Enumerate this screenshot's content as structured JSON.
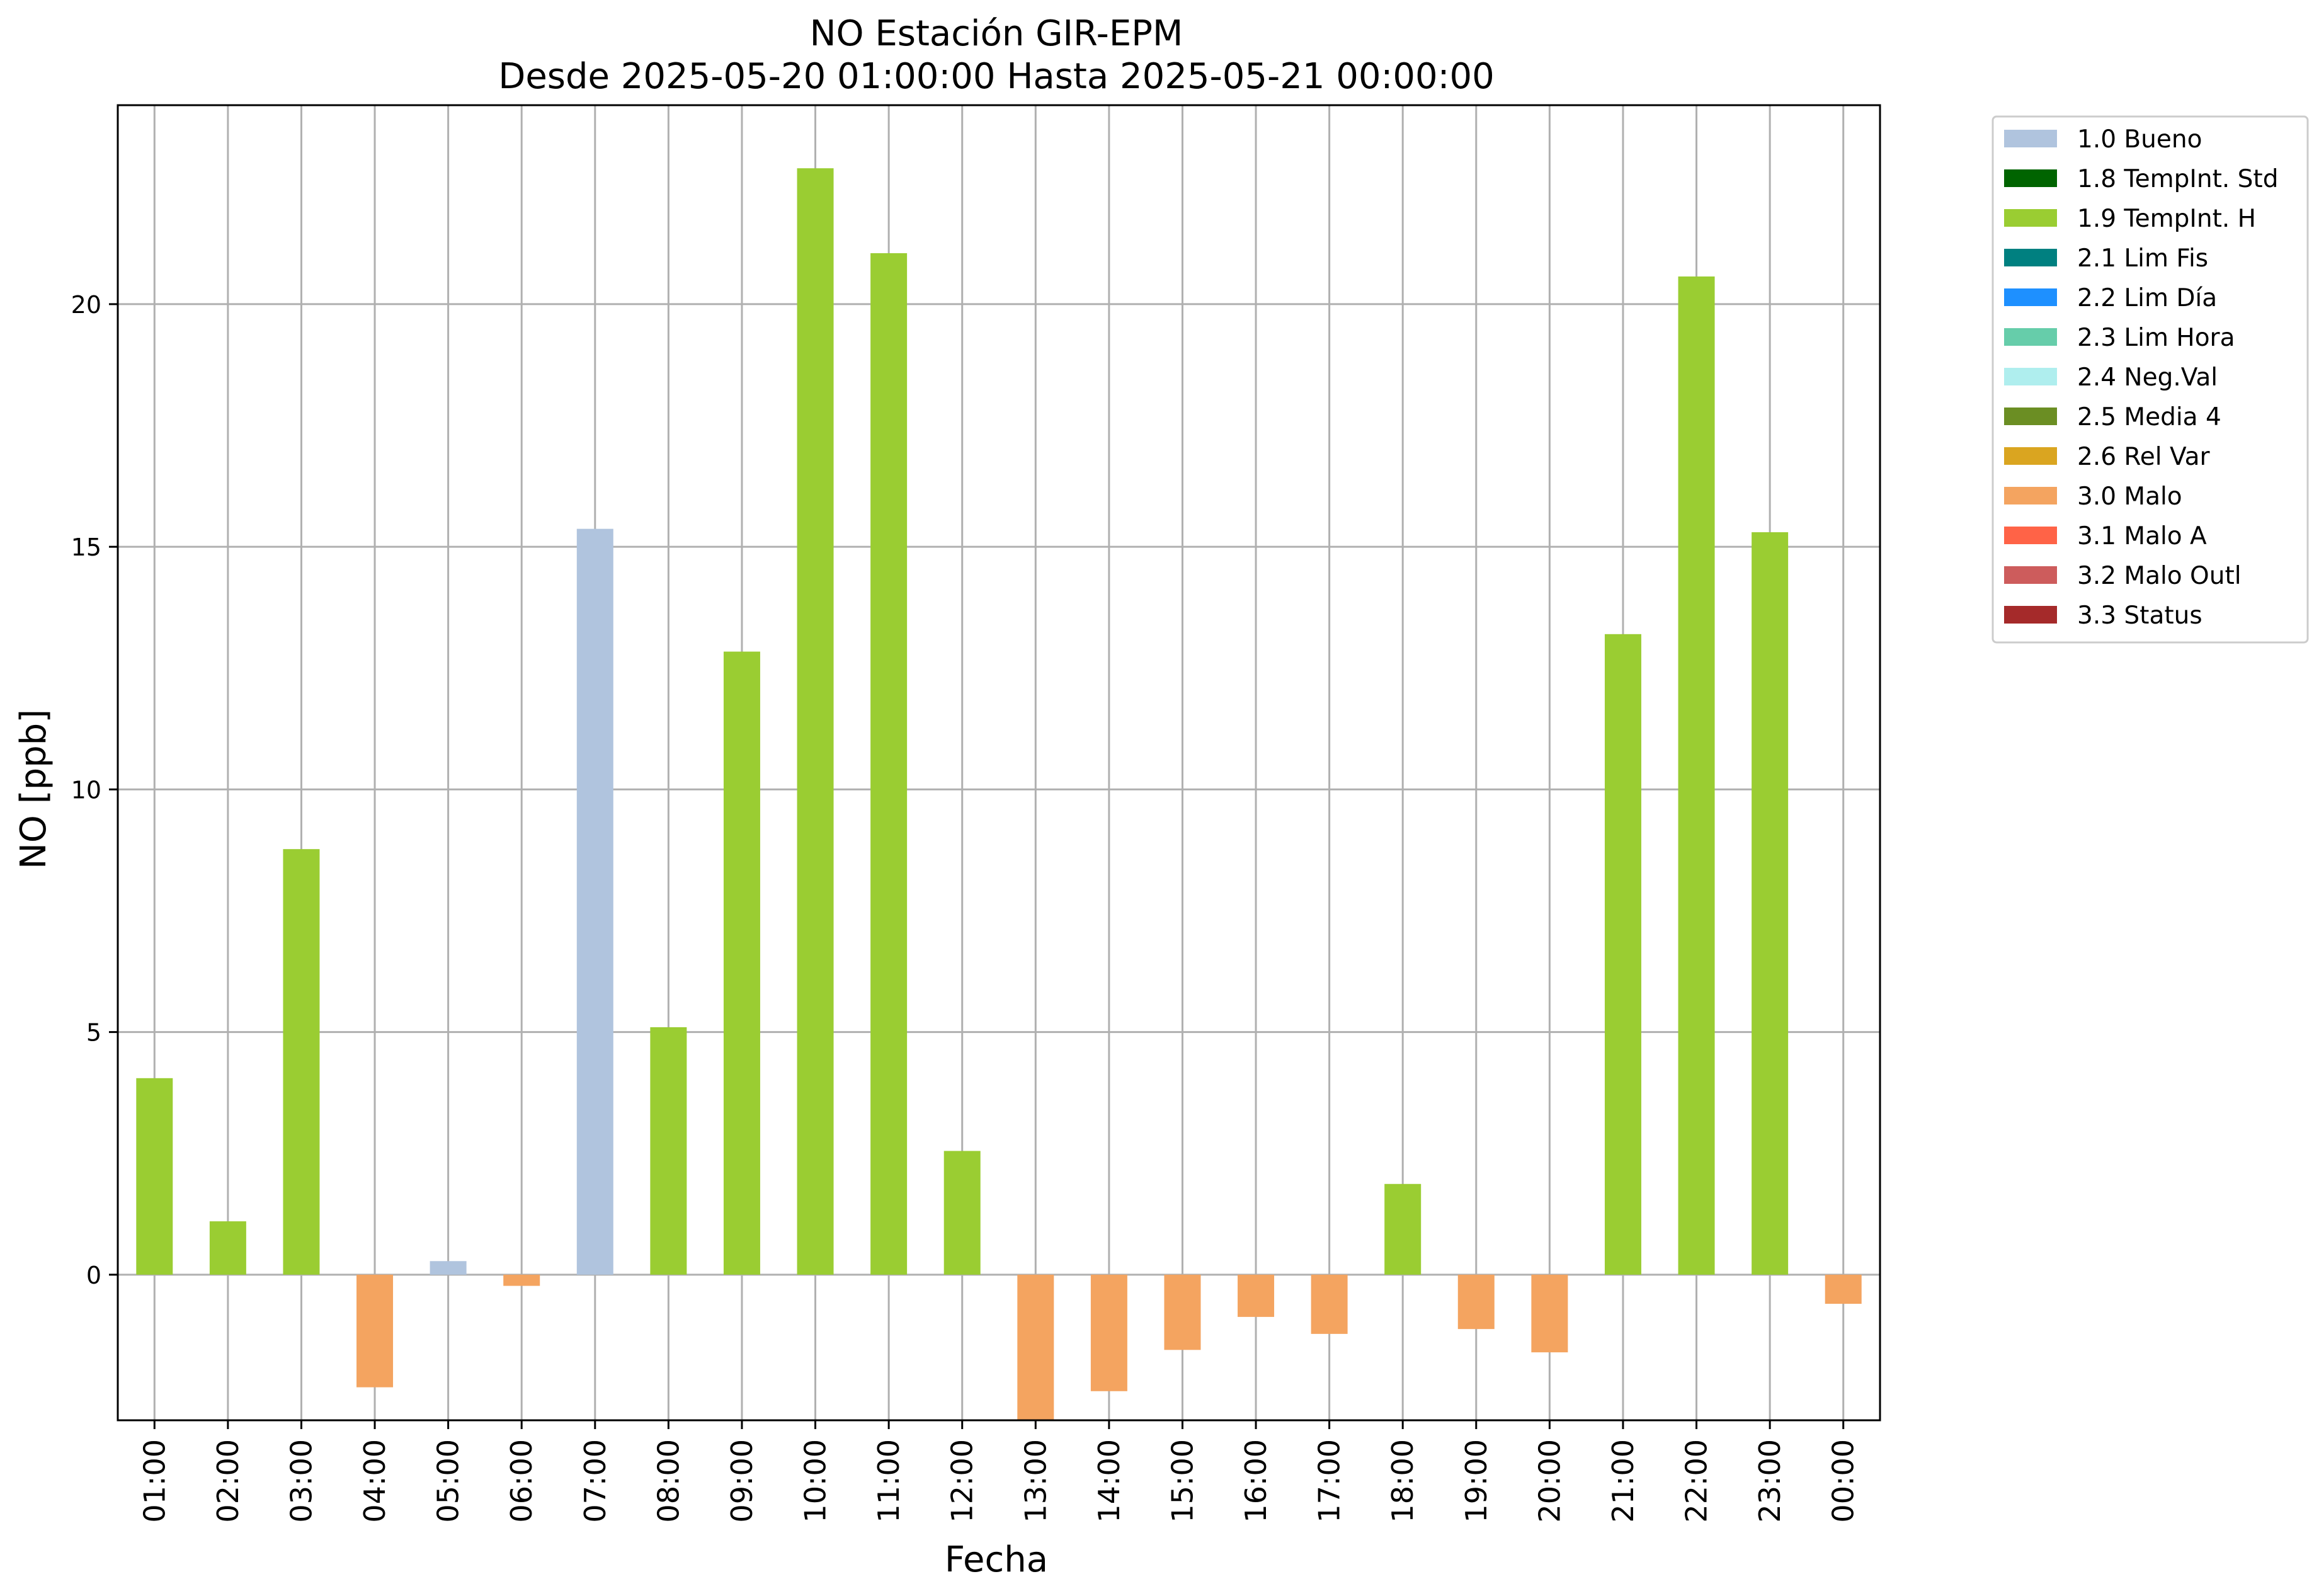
{
  "chart_data": {
    "type": "bar",
    "title": "NO Estación GIR-EPM",
    "subtitle": "Desde 2025-05-20 01:00:00 Hasta 2025-05-21 00:00:00",
    "xlabel": "Fecha",
    "ylabel": "NO [ppb]",
    "ylim": [
      -3.0,
      24.1
    ],
    "yticks": [
      0,
      5,
      10,
      15,
      20
    ],
    "grid": true,
    "legend_position": "outside-right-top",
    "categories": [
      "01:00",
      "02:00",
      "03:00",
      "04:00",
      "05:00",
      "06:00",
      "07:00",
      "08:00",
      "09:00",
      "10:00",
      "11:00",
      "12:00",
      "13:00",
      "14:00",
      "15:00",
      "16:00",
      "17:00",
      "18:00",
      "19:00",
      "20:00",
      "21:00",
      "22:00",
      "23:00",
      "00:00"
    ],
    "values": [
      4.05,
      1.1,
      8.77,
      -2.32,
      0.28,
      -0.23,
      15.37,
      5.1,
      12.84,
      22.8,
      21.05,
      2.55,
      -3.1,
      -2.4,
      -1.55,
      -0.87,
      -1.22,
      1.87,
      -1.12,
      -1.6,
      13.2,
      20.57,
      15.3,
      -0.6
    ],
    "flags": [
      "1.9",
      "1.9",
      "1.9",
      "3.0",
      "1.0",
      "3.0",
      "1.0",
      "1.9",
      "1.9",
      "1.9",
      "1.9",
      "1.9",
      "3.0",
      "3.0",
      "3.0",
      "3.0",
      "3.0",
      "1.9",
      "3.0",
      "3.0",
      "1.9",
      "1.9",
      "1.9",
      "3.0"
    ],
    "legend": [
      {
        "code": "1.0",
        "label": "1.0 Bueno",
        "color": "#b0c4de"
      },
      {
        "code": "1.8",
        "label": "1.8 TempInt. Std",
        "color": "#006400"
      },
      {
        "code": "1.9",
        "label": "1.9 TempInt. H",
        "color": "#9acd32"
      },
      {
        "code": "2.1",
        "label": "2.1 Lim Fis",
        "color": "#008080"
      },
      {
        "code": "2.2",
        "label": "2.2 Lim Día",
        "color": "#1e90ff"
      },
      {
        "code": "2.3",
        "label": "2.3 Lim Hora",
        "color": "#66cdaa"
      },
      {
        "code": "2.4",
        "label": "2.4 Neg.Val",
        "color": "#afeeee"
      },
      {
        "code": "2.5",
        "label": "2.5 Media 4",
        "color": "#6b8e23"
      },
      {
        "code": "2.6",
        "label": "2.6 Rel Var",
        "color": "#daa520"
      },
      {
        "code": "3.0",
        "label": "3.0 Malo",
        "color": "#f4a460"
      },
      {
        "code": "3.1",
        "label": "3.1 Malo A",
        "color": "#ff6347"
      },
      {
        "code": "3.2",
        "label": "3.2 Malo Outl",
        "color": "#cd5c5c"
      },
      {
        "code": "3.3",
        "label": "3.3 Status",
        "color": "#a52a2a"
      }
    ]
  }
}
